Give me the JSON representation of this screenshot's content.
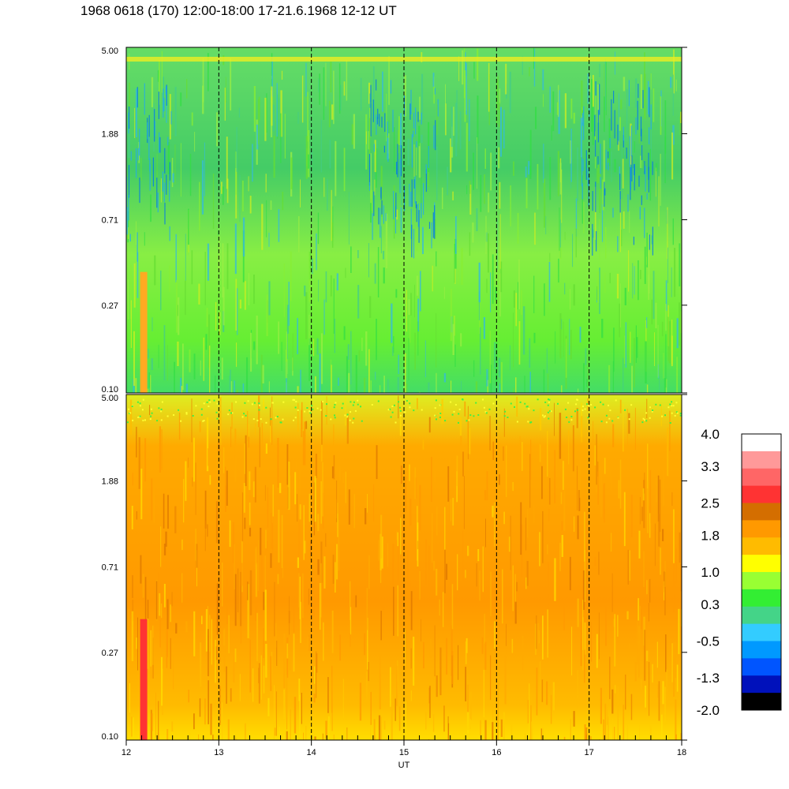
{
  "title": "1968 0618 (170) 12:00-18:00 17-21.6.1968  12-12 UT",
  "chart_data": {
    "type": "heatmap",
    "xlabel": "UT",
    "x_ticks": [
      "12",
      "13",
      "14",
      "15",
      "16",
      "17",
      "18"
    ],
    "xlim": [
      12,
      18
    ],
    "dashed_vertical_lines": [
      13,
      14,
      15,
      16,
      17
    ],
    "panels": [
      {
        "y_ticks": [
          "5.00",
          "1.88",
          "0.71",
          "0.27",
          "0.10"
        ],
        "ylim": [
          0.1,
          5.0
        ],
        "yscale": "log",
        "dominant_levels": [
          "green",
          "light-green",
          "yellow-green",
          "cyan"
        ],
        "notable_features": [
          "blue/low values near 1.88 around 12.1, 15.0, 17.3",
          "bright band near 5.00",
          "orange column near 12.15 below 0.27"
        ]
      },
      {
        "y_ticks": [
          "5.00",
          "1.88",
          "0.71",
          "0.27",
          "0.10"
        ],
        "ylim": [
          0.1,
          5.0
        ],
        "yscale": "log",
        "dominant_levels": [
          "orange",
          "amber",
          "yellow"
        ],
        "notable_features": [
          "red column near 12.15 below 0.27",
          "green/yellow speckle near 5.00"
        ]
      }
    ],
    "colorbar": {
      "tick_labels": [
        "4.0",
        "3.3",
        "2.5",
        "1.8",
        "1.0",
        "0.3",
        "-0.5",
        "-1.3",
        "-2.0"
      ],
      "range": [
        -2.0,
        4.0
      ],
      "colors_top_to_bottom": [
        "#ffffff",
        "#ff9999",
        "#ff6666",
        "#ff3333",
        "#d46e00",
        "#ff9900",
        "#ffbb00",
        "#ffff00",
        "#99ff33",
        "#33ee33",
        "#44d488",
        "#33ccff",
        "#0099ff",
        "#0055ff",
        "#0011bb",
        "#000000"
      ]
    }
  }
}
